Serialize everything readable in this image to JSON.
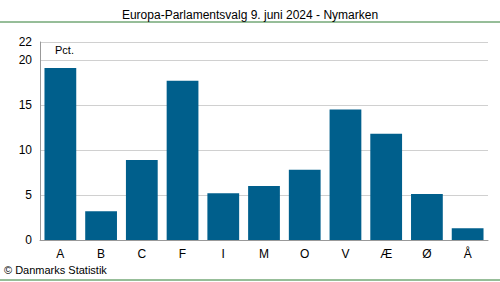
{
  "chart_data": {
    "type": "bar",
    "title": "Europa-Parlamentsvalg 9. juni 2024 - Nymarken",
    "ylabel": "Pct.",
    "source": "© Danmarks Statistik",
    "categories": [
      "A",
      "B",
      "C",
      "F",
      "I",
      "M",
      "O",
      "V",
      "Æ",
      "Ø",
      "Å"
    ],
    "values": [
      19.1,
      3.2,
      8.9,
      17.7,
      5.2,
      6.0,
      7.8,
      14.5,
      11.8,
      5.1,
      1.3
    ],
    "color": "#005f8c",
    "ylim": [
      0,
      22
    ],
    "yticks": [
      0,
      5,
      10,
      15,
      20
    ],
    "grid": true
  }
}
